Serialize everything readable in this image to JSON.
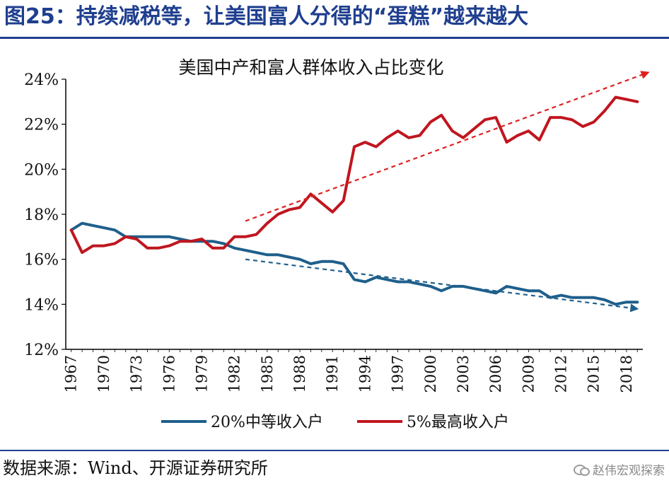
{
  "figure_title": "图25：持续减税等，让美国富人分得的“蛋糕”越来越大",
  "source": "数据来源：Wind、开源证券研究所",
  "watermark": "赵伟宏观探索",
  "colors": {
    "title": "#1f3f8f",
    "middle": "#1f5f8b",
    "top": "#c0161f"
  },
  "icons": {
    "watermark": "wechat-icon"
  },
  "chart_data": {
    "type": "line",
    "title": "美国中产和富人群体收入占比变化",
    "xlabel": "",
    "ylabel": "",
    "ylim": [
      12,
      24
    ],
    "xlim": [
      1967,
      2019
    ],
    "y_ticks": [
      "12%",
      "14%",
      "16%",
      "18%",
      "20%",
      "22%",
      "24%"
    ],
    "x_ticks": [
      "1967",
      "1970",
      "1973",
      "1976",
      "1979",
      "1982",
      "1985",
      "1988",
      "1991",
      "1994",
      "1997",
      "2000",
      "2003",
      "2006",
      "2009",
      "2012",
      "2015",
      "2018"
    ],
    "grid": false,
    "legend_position": "bottom",
    "x": [
      1967,
      1968,
      1969,
      1970,
      1971,
      1972,
      1973,
      1974,
      1975,
      1976,
      1977,
      1978,
      1979,
      1980,
      1981,
      1982,
      1983,
      1984,
      1985,
      1986,
      1987,
      1988,
      1989,
      1990,
      1991,
      1992,
      1993,
      1994,
      1995,
      1996,
      1997,
      1998,
      1999,
      2000,
      2001,
      2002,
      2003,
      2004,
      2005,
      2006,
      2007,
      2008,
      2009,
      2010,
      2011,
      2012,
      2013,
      2014,
      2015,
      2016,
      2017,
      2018,
      2019
    ],
    "series": [
      {
        "name": "20%中等收入户",
        "color": "#1f5f8b",
        "values": [
          17.3,
          17.6,
          17.5,
          17.4,
          17.3,
          17.0,
          17.0,
          17.0,
          17.0,
          17.0,
          16.9,
          16.8,
          16.8,
          16.8,
          16.7,
          16.5,
          16.4,
          16.3,
          16.2,
          16.2,
          16.1,
          16.0,
          15.8,
          15.9,
          15.9,
          15.8,
          15.1,
          15.0,
          15.2,
          15.1,
          15.0,
          15.0,
          14.9,
          14.8,
          14.6,
          14.8,
          14.8,
          14.7,
          14.6,
          14.5,
          14.8,
          14.7,
          14.6,
          14.6,
          14.3,
          14.4,
          14.3,
          14.3,
          14.3,
          14.2,
          14.0,
          14.1,
          14.1
        ]
      },
      {
        "name": "5%最高收入户",
        "color": "#c0161f",
        "values": [
          17.3,
          16.3,
          16.6,
          16.6,
          16.7,
          17.0,
          16.9,
          16.5,
          16.5,
          16.6,
          16.8,
          16.8,
          16.9,
          16.5,
          16.5,
          17.0,
          17.0,
          17.1,
          17.6,
          18.0,
          18.2,
          18.3,
          18.9,
          18.5,
          18.1,
          18.6,
          21.0,
          21.2,
          21.0,
          21.4,
          21.7,
          21.4,
          21.5,
          22.1,
          22.4,
          21.7,
          21.4,
          21.8,
          22.2,
          22.3,
          21.2,
          21.5,
          21.7,
          21.3,
          22.3,
          22.3,
          22.2,
          21.9,
          22.1,
          22.6,
          23.2,
          23.1,
          23.0
        ]
      }
    ],
    "annotations": [
      {
        "type": "trend-arrow",
        "series": "5%最高收入户",
        "from": [
          1983,
          17.7
        ],
        "to": [
          2020,
          24.3
        ]
      },
      {
        "type": "trend-arrow",
        "series": "20%中等收入户",
        "from": [
          1983,
          16.0
        ],
        "to": [
          2019,
          13.8
        ]
      }
    ]
  }
}
